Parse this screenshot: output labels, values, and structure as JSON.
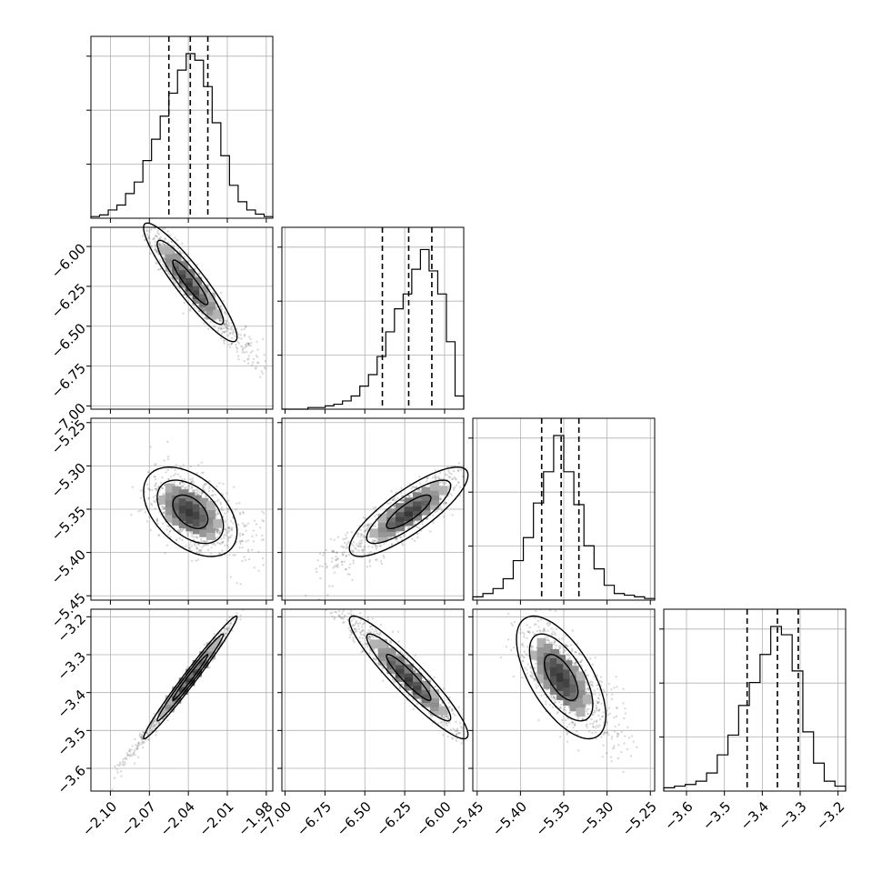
{
  "chart_data": {
    "type": "corner",
    "title": "",
    "parameters": [
      {
        "range": [
          -2.115,
          -1.975
        ],
        "ticks": [
          -2.1,
          -2.07,
          -2.04,
          -2.01,
          -1.98
        ],
        "tick_labels": [
          "−2.10",
          "−2.07",
          "−2.04",
          "−2.01",
          "−1.98"
        ],
        "quantiles": [
          -2.055,
          -2.0385,
          -2.025
        ],
        "hist_counts": [
          0.01,
          0.02,
          0.05,
          0.08,
          0.15,
          0.22,
          0.35,
          0.48,
          0.62,
          0.76,
          0.9,
          1.0,
          0.96,
          0.8,
          0.58,
          0.38,
          0.2,
          0.1,
          0.05,
          0.025,
          0.01
        ]
      },
      {
        "range": [
          -7.02,
          -5.88
        ],
        "ticks": [
          -7.0,
          -6.75,
          -6.5,
          -6.25,
          -6.0
        ],
        "tick_labels": [
          "−7.00",
          "−6.75",
          "−6.50",
          "−6.25",
          "−6.00"
        ],
        "quantiles": [
          -6.39,
          -6.225,
          -6.08
        ],
        "hist_counts": [
          0,
          0,
          0,
          0.01,
          0.01,
          0.02,
          0.03,
          0.05,
          0.08,
          0.14,
          0.21,
          0.32,
          0.47,
          0.61,
          0.7,
          0.85,
          0.97,
          0.84,
          0.7,
          0.41,
          0.08
        ]
      },
      {
        "range": [
          -5.455,
          -5.245
        ],
        "ticks": [
          -5.45,
          -5.4,
          -5.35,
          -5.3,
          -5.25
        ],
        "tick_labels": [
          "−5.45",
          "−5.40",
          "−5.35",
          "−5.30",
          "−5.25"
        ],
        "quantiles": [
          -5.3755,
          -5.353,
          -5.3325
        ],
        "hist_counts": [
          0.02,
          0.04,
          0.07,
          0.13,
          0.24,
          0.38,
          0.59,
          0.78,
          1.0,
          0.78,
          0.58,
          0.33,
          0.19,
          0.09,
          0.04,
          0.03,
          0.02,
          0.01
        ]
      },
      {
        "range": [
          -3.66,
          -3.18
        ],
        "ticks": [
          -3.6,
          -3.5,
          -3.4,
          -3.3,
          -3.2
        ],
        "tick_labels": [
          "−3.6",
          "−3.5",
          "−3.4",
          "−3.3",
          "−3.2"
        ],
        "quantiles": [
          -3.44,
          -3.36,
          -3.305
        ],
        "hist_counts": [
          0.02,
          0.03,
          0.04,
          0.06,
          0.11,
          0.22,
          0.34,
          0.52,
          0.66,
          0.83,
          1.0,
          0.95,
          0.73,
          0.36,
          0.17,
          0.06,
          0.03
        ]
      }
    ],
    "pairs": [
      {
        "x": 0,
        "y": 1,
        "rho": -0.92,
        "outlier_dir": [
          1,
          1
        ]
      },
      {
        "x": 0,
        "y": 2,
        "rho": -0.45,
        "outlier_dir": [
          1,
          1
        ]
      },
      {
        "x": 1,
        "y": 2,
        "rho": 0.82,
        "outlier_dir": [
          -1,
          -1
        ]
      },
      {
        "x": 0,
        "y": 3,
        "rho": 0.985,
        "outlier_dir": [
          -1,
          -1
        ]
      },
      {
        "x": 1,
        "y": 3,
        "rho": -0.93,
        "outlier_dir": [
          -1,
          1
        ]
      },
      {
        "x": 2,
        "y": 3,
        "rho": -0.62,
        "outlier_dir": [
          1,
          1
        ]
      }
    ],
    "grid": true,
    "legend": "none"
  }
}
